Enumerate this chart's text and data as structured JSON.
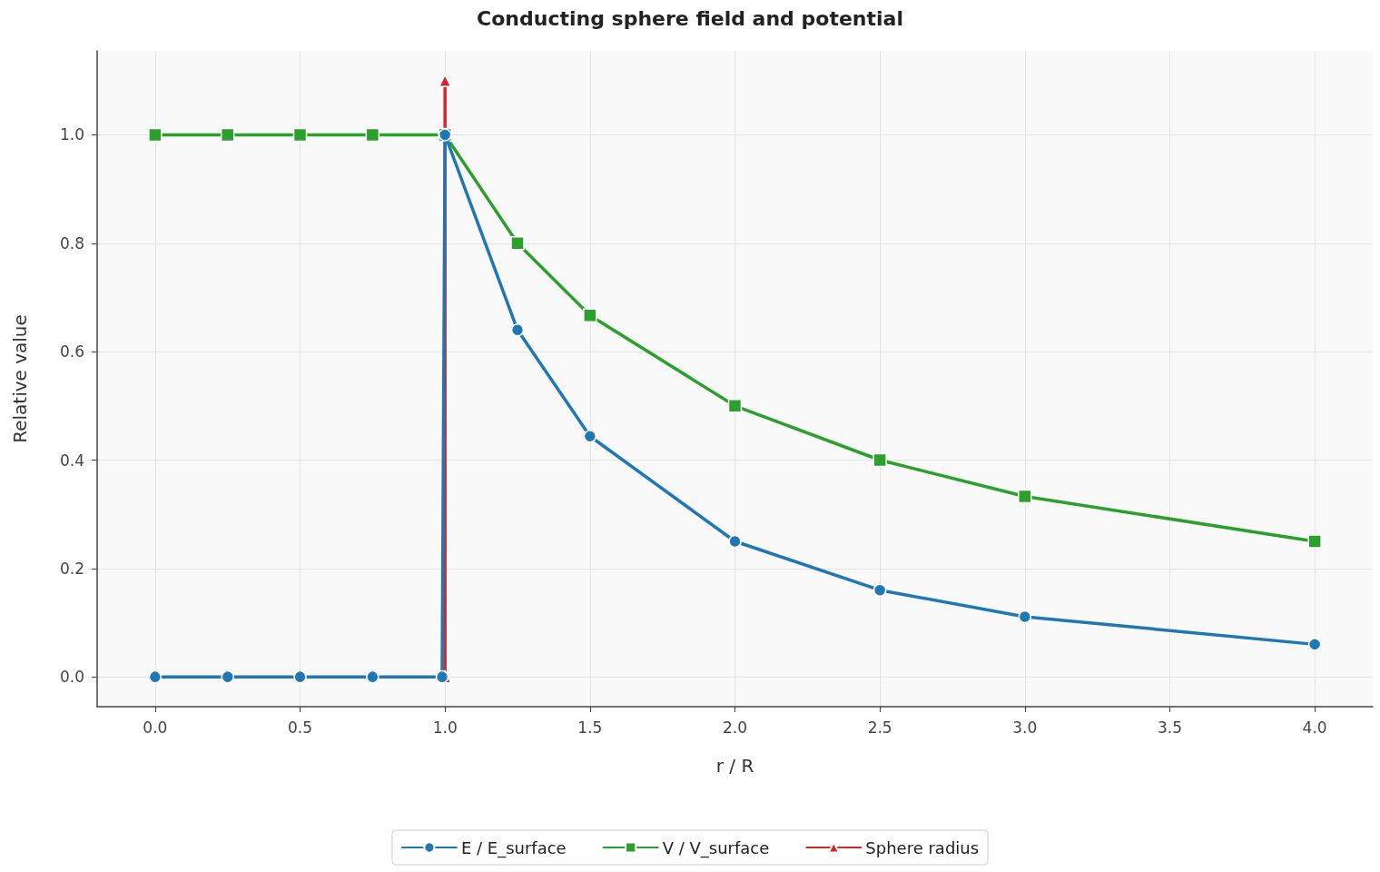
{
  "chart_data": {
    "type": "line",
    "title": "Conducting sphere field and potential",
    "xlabel": "r / R",
    "ylabel": "Relative value",
    "series": [
      {
        "name": "E / E_surface",
        "color": "#1f77b4",
        "marker": "circle",
        "x": [
          0,
          0.25,
          0.5,
          0.75,
          0.99,
          1.0,
          1.25,
          1.5,
          2.0,
          2.5,
          3.0,
          4.0
        ],
        "values": [
          0,
          0,
          0,
          0,
          0,
          1.0,
          0.64,
          0.444,
          0.25,
          0.16,
          0.111,
          0.06
        ]
      },
      {
        "name": "V / V_surface",
        "color": "#2ca02c",
        "marker": "square",
        "x": [
          0,
          0.25,
          0.5,
          0.75,
          1.0,
          1.25,
          1.5,
          2.0,
          2.5,
          3.0,
          4.0
        ],
        "values": [
          1,
          1,
          1,
          1,
          1.0,
          0.8,
          0.667,
          0.5,
          0.4,
          0.333,
          0.25
        ]
      },
      {
        "name": "Sphere radius",
        "color": "#d62728",
        "marker": "triangle",
        "x": [
          1.0,
          1.0
        ],
        "values": [
          0,
          1.1
        ]
      }
    ],
    "xlim": [
      -0.2,
      4.2
    ],
    "xticks": [
      {
        "value": 0,
        "label": "0.0"
      },
      {
        "value": 0.5,
        "label": "0.5"
      },
      {
        "value": 1,
        "label": "1.0"
      },
      {
        "value": 1.5,
        "label": "1.5"
      },
      {
        "value": 2,
        "label": "2.0"
      },
      {
        "value": 2.5,
        "label": "2.5"
      },
      {
        "value": 3,
        "label": "3.0"
      },
      {
        "value": 3.5,
        "label": "3.5"
      },
      {
        "value": 4,
        "label": "4.0"
      }
    ],
    "ylim": [
      -0.055,
      1.155
    ],
    "yticks": [
      {
        "value": 0,
        "label": "0.0"
      },
      {
        "value": 0.2,
        "label": "0.2"
      },
      {
        "value": 0.4,
        "label": "0.4"
      },
      {
        "value": 0.6,
        "label": "0.6"
      },
      {
        "value": 0.8,
        "label": "0.8"
      },
      {
        "value": 1,
        "label": "1.0"
      }
    ],
    "grid": true,
    "legend": "bottom",
    "line_style": "solid"
  }
}
